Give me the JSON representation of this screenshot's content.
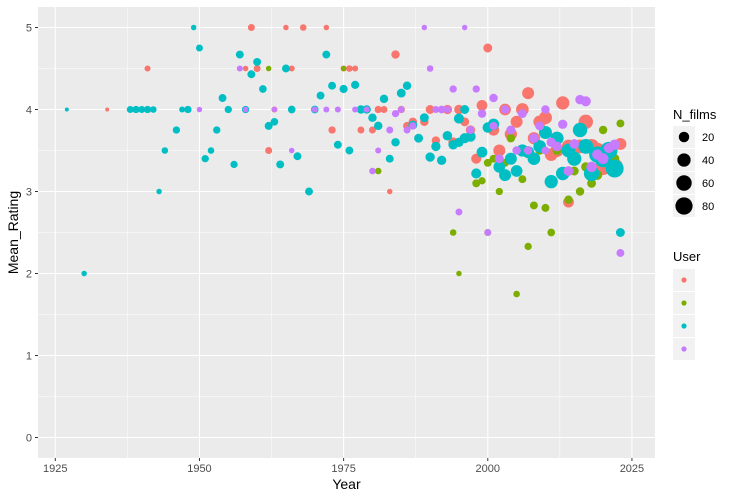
{
  "chart_data": {
    "type": "scatter",
    "title": "",
    "xlabel": "Year",
    "ylabel": "Mean_Rating",
    "xlim": [
      1922,
      2029
    ],
    "ylim": [
      -0.25,
      5.25
    ],
    "x_ticks": [
      1925,
      1950,
      1975,
      2000,
      2025
    ],
    "y_ticks": [
      0,
      1,
      2,
      3,
      4,
      5
    ],
    "grid": true,
    "background": "#ebebeb",
    "legend_position": "right",
    "size_legend": {
      "title": "N_films",
      "values": [
        20,
        40,
        60,
        80
      ],
      "size_range": [
        1,
        90
      ]
    },
    "color_legend": {
      "title": "User",
      "entries": [
        {
          "label": "",
          "color": "#F8766D"
        },
        {
          "label": "",
          "color": "#7CAE00"
        },
        {
          "label": "",
          "color": "#00BFC4"
        },
        {
          "label": "",
          "color": "#C77CFF"
        }
      ]
    },
    "series": [
      {
        "color": "#F8766D",
        "points": [
          [
            1934,
            4.0,
            1
          ],
          [
            1941,
            4.5,
            3
          ],
          [
            1958,
            4.5,
            2
          ],
          [
            1959,
            5.0,
            5
          ],
          [
            1960,
            4.5,
            5
          ],
          [
            1962,
            3.5,
            5
          ],
          [
            1963,
            4.0,
            3
          ],
          [
            1965,
            5.0,
            2
          ],
          [
            1966,
            4.5,
            3
          ],
          [
            1968,
            5.0,
            4
          ],
          [
            1972,
            5.0,
            2
          ],
          [
            1973,
            3.75,
            6
          ],
          [
            1975,
            4.5,
            3
          ],
          [
            1976,
            4.5,
            4
          ],
          [
            1977,
            4.5,
            3
          ],
          [
            1978,
            3.75,
            5
          ],
          [
            1979,
            4.0,
            6
          ],
          [
            1980,
            3.75,
            5
          ],
          [
            1981,
            4.0,
            6
          ],
          [
            1982,
            4.0,
            5
          ],
          [
            1983,
            3.0,
            2
          ],
          [
            1984,
            4.67,
            10
          ],
          [
            1985,
            4.0,
            6
          ],
          [
            1986,
            3.8,
            8
          ],
          [
            1987,
            3.85,
            10
          ],
          [
            1989,
            3.85,
            10
          ],
          [
            1990,
            4.0,
            12
          ],
          [
            1991,
            3.62,
            10
          ],
          [
            1993,
            4.0,
            14
          ],
          [
            1994,
            3.6,
            16
          ],
          [
            1995,
            4.0,
            15
          ],
          [
            1996,
            3.85,
            12
          ],
          [
            1997,
            3.75,
            14
          ],
          [
            1998,
            3.4,
            18
          ],
          [
            1999,
            4.05,
            22
          ],
          [
            2000,
            4.75,
            12
          ],
          [
            2001,
            3.75,
            25
          ],
          [
            2002,
            3.5,
            30
          ],
          [
            2003,
            4.0,
            28
          ],
          [
            2004,
            3.7,
            32
          ],
          [
            2005,
            3.85,
            30
          ],
          [
            2006,
            4.0,
            35
          ],
          [
            2007,
            4.2,
            30
          ],
          [
            2008,
            3.65,
            32
          ],
          [
            2009,
            3.85,
            35
          ],
          [
            2010,
            3.9,
            38
          ],
          [
            2011,
            3.45,
            35
          ],
          [
            2012,
            3.5,
            38
          ],
          [
            2013,
            4.08,
            40
          ],
          [
            2014,
            3.55,
            42
          ],
          [
            2015,
            3.4,
            45
          ],
          [
            2016,
            3.55,
            45
          ],
          [
            2017,
            3.85,
            50
          ],
          [
            2018,
            3.55,
            55
          ],
          [
            2019,
            3.5,
            60
          ],
          [
            2020,
            3.3,
            70
          ],
          [
            2021,
            3.35,
            80
          ],
          [
            2022,
            3.3,
            75
          ],
          [
            2023,
            3.58,
            30
          ],
          [
            2014,
            2.87,
            22
          ]
        ]
      },
      {
        "color": "#7CAE00",
        "points": [
          [
            1962,
            4.5,
            2
          ],
          [
            1975,
            4.5,
            2
          ],
          [
            1994,
            2.5,
            4
          ],
          [
            1995,
            2.0,
            2
          ],
          [
            2000,
            2.5,
            5
          ],
          [
            2001,
            3.4,
            8
          ],
          [
            2002,
            3.0,
            6
          ],
          [
            2003,
            3.35,
            8
          ],
          [
            2004,
            3.65,
            10
          ],
          [
            2005,
            1.75,
            4
          ],
          [
            2006,
            3.15,
            8
          ],
          [
            2007,
            2.33,
            6
          ],
          [
            2008,
            2.83,
            8
          ],
          [
            2009,
            3.5,
            10
          ],
          [
            2010,
            2.8,
            8
          ],
          [
            2011,
            2.5,
            7
          ],
          [
            2012,
            3.5,
            12
          ],
          [
            2014,
            2.9,
            10
          ],
          [
            2015,
            3.25,
            12
          ],
          [
            2016,
            3.0,
            10
          ],
          [
            2017,
            3.3,
            14
          ],
          [
            2018,
            3.1,
            12
          ],
          [
            2019,
            3.2,
            16
          ],
          [
            2020,
            3.75,
            10
          ],
          [
            2021,
            3.45,
            12
          ],
          [
            2022,
            3.4,
            14
          ],
          [
            2023,
            3.83,
            8
          ],
          [
            1998,
            3.1,
            8
          ],
          [
            1999,
            3.13,
            6
          ],
          [
            2000,
            3.35,
            8
          ],
          [
            1981,
            3.25,
            4
          ]
        ]
      },
      {
        "color": "#00BFC4",
        "points": [
          [
            1927,
            4.0,
            1
          ],
          [
            1930,
            2.0,
            2
          ],
          [
            1938,
            4.0,
            5
          ],
          [
            1939,
            4.0,
            6
          ],
          [
            1940,
            4.0,
            5
          ],
          [
            1941,
            4.0,
            6
          ],
          [
            1942,
            4.0,
            4
          ],
          [
            1943,
            3.0,
            2
          ],
          [
            1944,
            3.5,
            4
          ],
          [
            1946,
            3.75,
            6
          ],
          [
            1947,
            4.0,
            3
          ],
          [
            1948,
            4.0,
            6
          ],
          [
            1949,
            5.0,
            2
          ],
          [
            1950,
            4.75,
            5
          ],
          [
            1951,
            3.4,
            6
          ],
          [
            1952,
            3.5,
            4
          ],
          [
            1953,
            3.75,
            6
          ],
          [
            1954,
            4.14,
            8
          ],
          [
            1955,
            4.0,
            6
          ],
          [
            1956,
            3.33,
            6
          ],
          [
            1957,
            4.67,
            8
          ],
          [
            1958,
            4.0,
            6
          ],
          [
            1959,
            4.43,
            8
          ],
          [
            1960,
            4.58,
            8
          ],
          [
            1961,
            4.25,
            7
          ],
          [
            1962,
            3.8,
            8
          ],
          [
            1963,
            3.85,
            7
          ],
          [
            1964,
            3.33,
            8
          ],
          [
            1965,
            4.5,
            8
          ],
          [
            1966,
            4.0,
            7
          ],
          [
            1967,
            3.43,
            8
          ],
          [
            1969,
            3.0,
            8
          ],
          [
            1970,
            4.0,
            7
          ],
          [
            1971,
            4.17,
            8
          ],
          [
            1972,
            4.67,
            8
          ],
          [
            1973,
            4.29,
            8
          ],
          [
            1974,
            3.57,
            8
          ],
          [
            1975,
            4.25,
            9
          ],
          [
            1976,
            3.5,
            8
          ],
          [
            1977,
            4.3,
            9
          ],
          [
            1978,
            4.0,
            10
          ],
          [
            1979,
            4.0,
            10
          ],
          [
            1980,
            3.9,
            10
          ],
          [
            1981,
            3.8,
            10
          ],
          [
            1982,
            4.13,
            10
          ],
          [
            1983,
            3.4,
            8
          ],
          [
            1984,
            3.6,
            10
          ],
          [
            1985,
            4.2,
            12
          ],
          [
            1986,
            4.29,
            10
          ],
          [
            1987,
            3.81,
            12
          ],
          [
            1988,
            3.65,
            12
          ],
          [
            1989,
            3.9,
            12
          ],
          [
            1990,
            3.42,
            14
          ],
          [
            1991,
            3.55,
            14
          ],
          [
            1992,
            3.38,
            14
          ],
          [
            1993,
            3.68,
            15
          ],
          [
            1994,
            3.57,
            15
          ],
          [
            1995,
            3.89,
            18
          ],
          [
            1996,
            3.65,
            18
          ],
          [
            1997,
            3.67,
            20
          ],
          [
            1998,
            3.22,
            18
          ],
          [
            1999,
            3.48,
            22
          ],
          [
            2000,
            3.78,
            20
          ],
          [
            2001,
            3.82,
            25
          ],
          [
            2002,
            3.3,
            28
          ],
          [
            2003,
            3.2,
            30
          ],
          [
            2004,
            3.4,
            30
          ],
          [
            2005,
            3.25,
            28
          ],
          [
            2006,
            3.5,
            32
          ],
          [
            2007,
            3.48,
            30
          ],
          [
            2008,
            3.4,
            35
          ],
          [
            2009,
            3.55,
            35
          ],
          [
            2010,
            3.72,
            38
          ],
          [
            2011,
            3.12,
            40
          ],
          [
            2012,
            3.65,
            40
          ],
          [
            2013,
            3.22,
            42
          ],
          [
            2014,
            3.5,
            45
          ],
          [
            2015,
            3.4,
            48
          ],
          [
            2016,
            3.75,
            50
          ],
          [
            2017,
            3.55,
            55
          ],
          [
            2018,
            3.22,
            60
          ],
          [
            2019,
            3.45,
            70
          ],
          [
            2020,
            3.4,
            80
          ],
          [
            2021,
            3.5,
            82
          ],
          [
            2022,
            3.28,
            90
          ],
          [
            2023,
            2.5,
            12
          ],
          [
            1995,
            3.6,
            14
          ],
          [
            1996,
            4.0,
            12
          ]
        ]
      },
      {
        "color": "#C77CFF",
        "points": [
          [
            1950,
            4.0,
            2
          ],
          [
            1957,
            4.5,
            3
          ],
          [
            1958,
            4.0,
            2
          ],
          [
            1963,
            4.0,
            2
          ],
          [
            1966,
            3.5,
            2
          ],
          [
            1970,
            4.0,
            3
          ],
          [
            1972,
            4.0,
            3
          ],
          [
            1974,
            4.0,
            3
          ],
          [
            1977,
            4.0,
            3
          ],
          [
            1979,
            4.0,
            3
          ],
          [
            1980,
            3.25,
            4
          ],
          [
            1981,
            3.5,
            3
          ],
          [
            1983,
            3.75,
            5
          ],
          [
            1984,
            3.95,
            6
          ],
          [
            1985,
            4.0,
            4
          ],
          [
            1986,
            3.75,
            5
          ],
          [
            1987,
            3.8,
            6
          ],
          [
            1989,
            5.0,
            2
          ],
          [
            1990,
            4.5,
            4
          ],
          [
            1991,
            4.0,
            5
          ],
          [
            1992,
            4.0,
            7
          ],
          [
            1993,
            4.0,
            5
          ],
          [
            1994,
            4.25,
            6
          ],
          [
            1995,
            2.75,
            5
          ],
          [
            1996,
            5.0,
            2
          ],
          [
            1997,
            3.75,
            8
          ],
          [
            1998,
            4.25,
            6
          ],
          [
            1999,
            3.95,
            10
          ],
          [
            2000,
            2.5,
            5
          ],
          [
            2001,
            4.14,
            10
          ],
          [
            2002,
            3.4,
            12
          ],
          [
            2003,
            4.0,
            10
          ],
          [
            2004,
            3.75,
            12
          ],
          [
            2005,
            3.5,
            10
          ],
          [
            2006,
            3.95,
            12
          ],
          [
            2007,
            3.5,
            10
          ],
          [
            2008,
            3.65,
            15
          ],
          [
            2009,
            3.8,
            12
          ],
          [
            2010,
            4.0,
            10
          ],
          [
            2011,
            3.6,
            14
          ],
          [
            2012,
            3.55,
            16
          ],
          [
            2013,
            3.82,
            14
          ],
          [
            2014,
            3.25,
            16
          ],
          [
            2015,
            3.58,
            15
          ],
          [
            2016,
            4.12,
            15
          ],
          [
            2017,
            4.1,
            18
          ],
          [
            2018,
            3.3,
            20
          ],
          [
            2019,
            3.45,
            20
          ],
          [
            2020,
            3.4,
            22
          ],
          [
            2021,
            3.53,
            18
          ],
          [
            2022,
            3.57,
            20
          ],
          [
            2023,
            2.25,
            8
          ],
          [
            2001,
            3.8,
            8
          ],
          [
            2010,
            3.5,
            8
          ]
        ]
      }
    ]
  }
}
